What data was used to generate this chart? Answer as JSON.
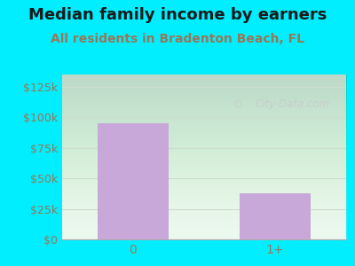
{
  "title": "Median family income by earners",
  "subtitle": "All residents in Bradenton Beach, FL",
  "categories": [
    "0",
    "1+"
  ],
  "values": [
    95000,
    38000
  ],
  "bar_color": "#c8a8d8",
  "title_fontsize": 13,
  "subtitle_fontsize": 10,
  "title_color": "#1a1a1a",
  "subtitle_color": "#997755",
  "tick_color": "#997755",
  "yticks": [
    0,
    25000,
    50000,
    75000,
    100000,
    125000
  ],
  "ytick_labels": [
    "$0",
    "$25k",
    "$50k",
    "$75k",
    "$100k",
    "$125k"
  ],
  "ylim": [
    0,
    135000
  ],
  "bg_color": "#00eeff",
  "plot_bg_color": "#eaf8ee",
  "watermark": "City-Data.com",
  "watermark_color": "#c8c8c8",
  "grid_color": "#ccddcc",
  "bar_width": 0.5
}
